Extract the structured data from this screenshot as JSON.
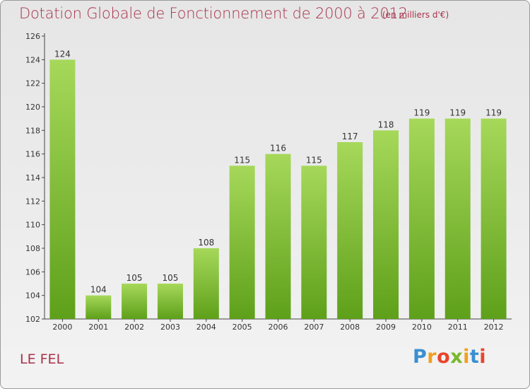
{
  "header": {
    "title": "Dotation Globale de Fonctionnement de 2000 à 2012",
    "subtitle": "(en milliers d'€)"
  },
  "footer": {
    "commune": "LE FEL",
    "logo_text": "Proxiti"
  },
  "colors": {
    "title": "#a8324a",
    "bar_top": "#a6d85a",
    "bar_bottom": "#5ea01a",
    "logo": [
      "#3a8fd0",
      "#f0a020",
      "#e8452c",
      "#78b82a"
    ]
  },
  "chart_data": {
    "type": "bar",
    "title": "Dotation Globale de Fonctionnement de 2000 à 2012",
    "subtitle": "(en milliers d'€)",
    "xlabel": "",
    "ylabel": "",
    "categories": [
      "2000",
      "2001",
      "2002",
      "2003",
      "2004",
      "2005",
      "2006",
      "2007",
      "2008",
      "2009",
      "2010",
      "2011",
      "2012"
    ],
    "values": [
      124,
      104,
      105,
      105,
      108,
      115,
      116,
      115,
      117,
      118,
      119,
      119,
      119
    ],
    "ylim": [
      102,
      126
    ],
    "yticks": [
      102,
      104,
      106,
      108,
      110,
      112,
      114,
      116,
      118,
      120,
      122,
      124,
      126
    ],
    "grid": false,
    "legend": "none"
  }
}
